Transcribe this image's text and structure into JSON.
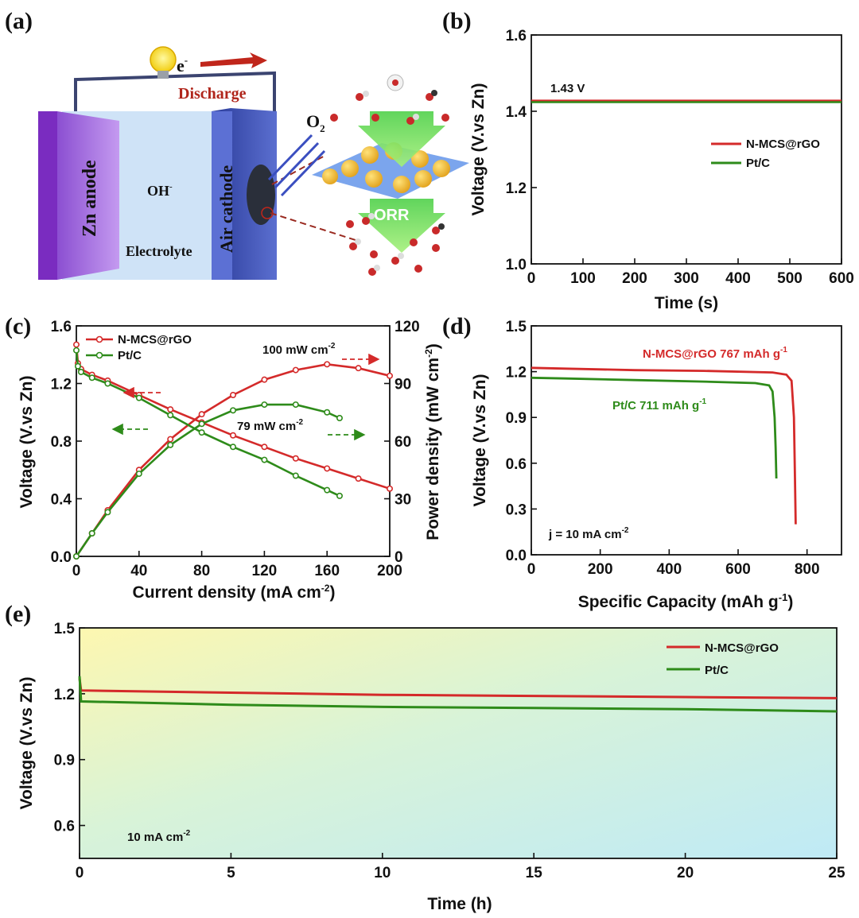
{
  "panels": {
    "a": "(a)",
    "b": "(b)",
    "c": "(c)",
    "d": "(d)",
    "e": "(e)"
  },
  "schematic": {
    "electron": "e",
    "electron_sup": "-",
    "discharge": "Discharge",
    "zn_anode": "Zn anode",
    "hydroxide": "OH",
    "hydroxide_sup": "-",
    "electrolyte": "Electrolyte",
    "air_cathode": "Air cathode",
    "oxygen": "O",
    "oxygen_sub": "2",
    "orr": "ORR"
  },
  "colors": {
    "nmcs": "#d42a2a",
    "ptc": "#2e8b1a",
    "anode": "#9a5fe0",
    "cathode": "#3b4fb0",
    "electrolyte": "#cfe3f7",
    "discharge_text": "#b0251b"
  },
  "chart_data": [
    {
      "id": "b",
      "type": "line",
      "title": "",
      "xlabel": "Time (s)",
      "ylabel": "Voltage (V.vs Zn)",
      "xlim": [
        0,
        600
      ],
      "ylim": [
        1.0,
        1.6
      ],
      "xticks": [
        0,
        100,
        200,
        300,
        400,
        500,
        600
      ],
      "yticks": [
        1.0,
        1.2,
        1.4,
        1.6
      ],
      "annotation": "1.43 V",
      "legend": [
        "N-MCS@rGO",
        "Pt/C"
      ],
      "series": [
        {
          "name": "N-MCS@rGO",
          "x": [
            0,
            100,
            200,
            300,
            400,
            500,
            600
          ],
          "y": [
            1.428,
            1.428,
            1.428,
            1.428,
            1.428,
            1.428,
            1.428
          ]
        },
        {
          "name": "Pt/C",
          "x": [
            0,
            100,
            200,
            300,
            400,
            500,
            600
          ],
          "y": [
            1.424,
            1.424,
            1.424,
            1.424,
            1.424,
            1.424,
            1.424
          ]
        }
      ]
    },
    {
      "id": "c",
      "type": "line",
      "xlabel": "Current density (mA cm",
      "xlabel_sup": "-2",
      "ylabel": "Voltage (V.vs Zn)",
      "y2label": "Power density (mW cm",
      "y2label_sup": "-2",
      "xlim": [
        0,
        200
      ],
      "ylim": [
        0.0,
        1.6
      ],
      "y2lim": [
        0,
        120
      ],
      "xticks": [
        0,
        40,
        80,
        120,
        160,
        200
      ],
      "yticks": [
        0.0,
        0.4,
        0.8,
        1.2,
        1.6
      ],
      "y2ticks": [
        0,
        30,
        60,
        90,
        120
      ],
      "legend": [
        "N-MCS@rGO",
        "Pt/C"
      ],
      "peak_nmcs": "100 mW cm",
      "peak_ptc": "79 mW cm",
      "peak_sup": "-2",
      "series": [
        {
          "name": "N-MCS@rGO",
          "kind": "voltage",
          "x": [
            0,
            1,
            3,
            10,
            20,
            40,
            60,
            80,
            100,
            120,
            140,
            160,
            180,
            200
          ],
          "y": [
            1.47,
            1.34,
            1.3,
            1.26,
            1.22,
            1.12,
            1.02,
            0.93,
            0.84,
            0.76,
            0.68,
            0.61,
            0.54,
            0.47
          ]
        },
        {
          "name": "N-MCS@rGO",
          "kind": "power",
          "x": [
            0,
            10,
            20,
            40,
            60,
            80,
            100,
            120,
            140,
            160,
            180,
            200
          ],
          "y": [
            0,
            12,
            24,
            45,
            61,
            74,
            84,
            92,
            97,
            100,
            98,
            94
          ]
        },
        {
          "name": "Pt/C",
          "kind": "voltage",
          "x": [
            0,
            1,
            3,
            10,
            20,
            40,
            60,
            80,
            100,
            120,
            140,
            160,
            168
          ],
          "y": [
            1.43,
            1.32,
            1.28,
            1.24,
            1.2,
            1.1,
            0.98,
            0.86,
            0.76,
            0.67,
            0.56,
            0.46,
            0.42
          ]
        },
        {
          "name": "Pt/C",
          "kind": "power",
          "x": [
            0,
            10,
            20,
            40,
            60,
            80,
            100,
            120,
            140,
            160,
            168
          ],
          "y": [
            0,
            12,
            23,
            43,
            58,
            69,
            76,
            79,
            79,
            75,
            72
          ]
        }
      ]
    },
    {
      "id": "d",
      "type": "line",
      "xlabel": "Specific Capacity (mAh g",
      "xlabel_sup": "-1",
      "ylabel": "Voltage (V.vs Zn)",
      "xlim": [
        0,
        900
      ],
      "ylim": [
        0.0,
        1.5
      ],
      "xticks": [
        0,
        200,
        400,
        600,
        800
      ],
      "yticks": [
        0.0,
        0.3,
        0.6,
        0.9,
        1.2,
        1.5
      ],
      "annotation": "j = 10 mA cm",
      "annotation_sup": "-2",
      "label_nmcs": "N-MCS@rGO 767 mAh g",
      "label_ptc": "Pt/C 711 mAh g",
      "label_sup": "-1",
      "series": [
        {
          "name": "N-MCS@rGO",
          "x": [
            0,
            100,
            300,
            500,
            700,
            740,
            755,
            762,
            765,
            767
          ],
          "y": [
            1.225,
            1.22,
            1.21,
            1.205,
            1.195,
            1.18,
            1.14,
            0.9,
            0.5,
            0.2
          ]
        },
        {
          "name": "Pt/C",
          "x": [
            0,
            100,
            300,
            500,
            650,
            690,
            700,
            706,
            709,
            711
          ],
          "y": [
            1.16,
            1.155,
            1.145,
            1.135,
            1.125,
            1.11,
            1.07,
            0.9,
            0.7,
            0.5
          ]
        }
      ]
    },
    {
      "id": "e",
      "type": "line",
      "xlabel": "Time (h)",
      "ylabel": "Voltage (V.vs Zn)",
      "xlim": [
        0,
        25
      ],
      "ylim": [
        0.45,
        1.5
      ],
      "xticks": [
        0,
        5,
        10,
        15,
        20,
        25
      ],
      "yticks": [
        0.6,
        0.9,
        1.2,
        1.5
      ],
      "annotation": "10 mA cm",
      "annotation_sup": "-2",
      "legend": [
        "N-MCS@rGO",
        "Pt/C"
      ],
      "series": [
        {
          "name": "N-MCS@rGO",
          "x": [
            0,
            0.05,
            5,
            10,
            15,
            20,
            25
          ],
          "y": [
            1.27,
            1.215,
            1.205,
            1.195,
            1.19,
            1.185,
            1.18
          ]
        },
        {
          "name": "Pt/C",
          "x": [
            0,
            0.05,
            5,
            10,
            15,
            20,
            25
          ],
          "y": [
            1.28,
            1.165,
            1.15,
            1.14,
            1.135,
            1.13,
            1.12
          ]
        }
      ]
    }
  ]
}
